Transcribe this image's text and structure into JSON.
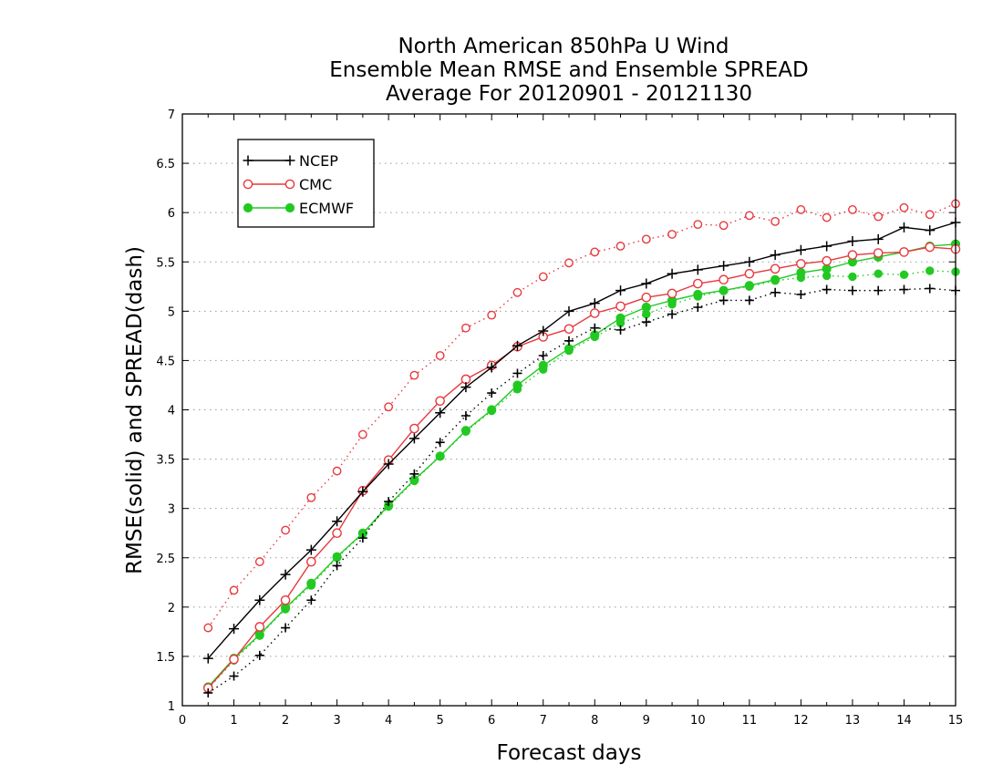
{
  "chart_data": {
    "type": "line",
    "title": [
      "North American 850hPa U Wind",
      "Ensemble Mean RMSE and Ensemble SPREAD",
      "Average For 20120901 - 20121130"
    ],
    "xlabel": "Forecast days",
    "ylabel": "RMSE(solid) and SPREAD(dash)",
    "xlim": [
      0,
      15
    ],
    "ylim": [
      1,
      7
    ],
    "xticks": [
      0,
      1,
      2,
      3,
      4,
      5,
      6,
      7,
      8,
      9,
      10,
      11,
      12,
      13,
      14,
      15
    ],
    "yticks": [
      1,
      1.5,
      2,
      2.5,
      3,
      3.5,
      4,
      4.5,
      5,
      5.5,
      6,
      6.5,
      7
    ],
    "grid": "horizontal-dotted",
    "legend_position": "top-left",
    "x": [
      0.5,
      1,
      1.5,
      2,
      2.5,
      3,
      3.5,
      4,
      4.5,
      5,
      5.5,
      6,
      6.5,
      7,
      7.5,
      8,
      8.5,
      9,
      9.5,
      10,
      10.5,
      11,
      11.5,
      12,
      12.5,
      13,
      13.5,
      14,
      14.5,
      15
    ],
    "series": [
      {
        "name": "NCEP",
        "color": "#000000",
        "marker": "plus",
        "rmse": [
          1.48,
          1.78,
          2.07,
          2.33,
          2.58,
          2.87,
          3.17,
          3.45,
          3.71,
          3.97,
          4.23,
          4.43,
          4.65,
          4.8,
          5.0,
          5.08,
          5.21,
          5.28,
          5.38,
          5.42,
          5.46,
          5.5,
          5.57,
          5.62,
          5.66,
          5.71,
          5.73,
          5.85,
          5.82,
          5.9
        ],
        "spread": [
          1.13,
          1.3,
          1.51,
          1.79,
          2.07,
          2.42,
          2.7,
          3.07,
          3.35,
          3.67,
          3.94,
          4.17,
          4.37,
          4.55,
          4.7,
          4.83,
          4.81,
          4.89,
          4.97,
          5.04,
          5.11,
          5.11,
          5.19,
          5.17,
          5.22,
          5.21,
          5.21,
          5.22,
          5.23,
          5.21
        ]
      },
      {
        "name": "CMC",
        "color": "#e8383d",
        "marker": "open-circle",
        "rmse": [
          1.18,
          1.47,
          1.8,
          2.07,
          2.46,
          2.75,
          3.18,
          3.49,
          3.81,
          4.09,
          4.31,
          4.45,
          4.64,
          4.74,
          4.82,
          4.98,
          5.05,
          5.14,
          5.18,
          5.28,
          5.32,
          5.38,
          5.43,
          5.48,
          5.51,
          5.57,
          5.59,
          5.6,
          5.65,
          5.63
        ],
        "spread": [
          1.79,
          2.17,
          2.46,
          2.78,
          3.11,
          3.38,
          3.75,
          4.03,
          4.35,
          4.55,
          4.83,
          4.96,
          5.19,
          5.35,
          5.49,
          5.6,
          5.66,
          5.73,
          5.78,
          5.88,
          5.87,
          5.97,
          5.91,
          6.03,
          5.95,
          6.03,
          5.96,
          6.05,
          5.98,
          6.09
        ]
      },
      {
        "name": "ECMWF",
        "color": "#22c922",
        "marker": "filled-circle",
        "rmse": [
          1.19,
          1.48,
          1.72,
          1.99,
          2.24,
          2.51,
          2.75,
          3.03,
          3.29,
          3.53,
          3.79,
          4.0,
          4.25,
          4.45,
          4.62,
          4.76,
          4.93,
          5.04,
          5.11,
          5.17,
          5.21,
          5.26,
          5.32,
          5.39,
          5.43,
          5.5,
          5.55,
          5.6,
          5.66,
          5.68
        ],
        "spread": [
          1.17,
          1.46,
          1.71,
          1.98,
          2.22,
          2.5,
          2.74,
          3.02,
          3.28,
          3.53,
          3.78,
          3.99,
          4.21,
          4.41,
          4.6,
          4.74,
          4.88,
          4.97,
          5.07,
          5.15,
          5.21,
          5.25,
          5.31,
          5.34,
          5.36,
          5.35,
          5.38,
          5.37,
          5.41,
          5.4
        ]
      }
    ]
  }
}
